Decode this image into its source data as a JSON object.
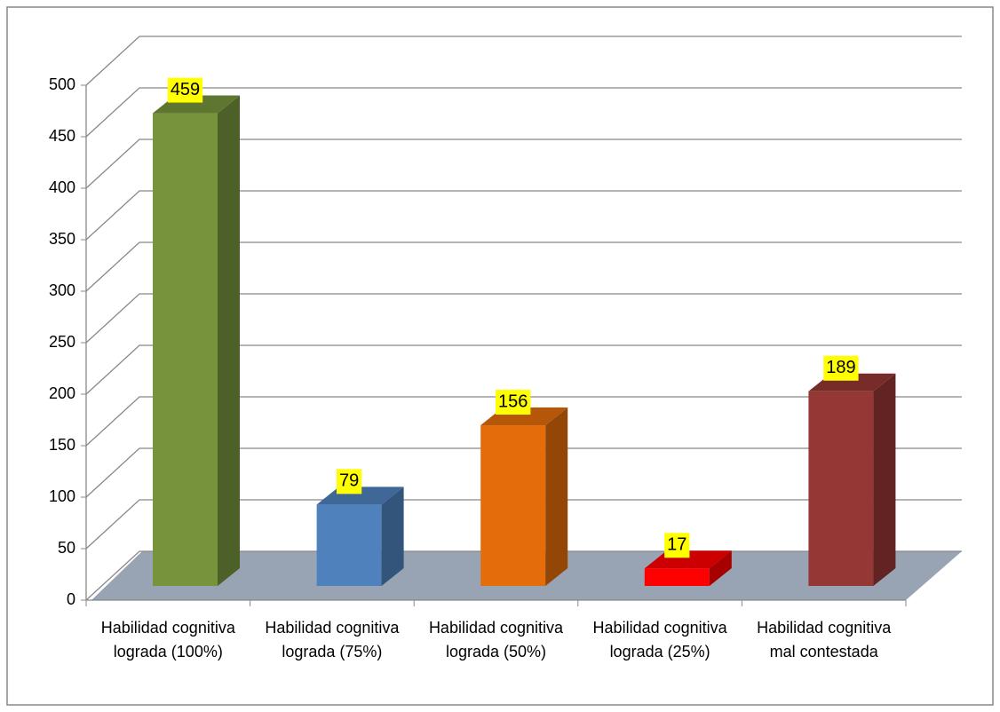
{
  "chart_data": {
    "type": "bar3d",
    "categories": [
      "Habilidad cognitiva lograda (100%)",
      "Habilidad cognitiva lograda (75%)",
      "Habilidad cognitiva lograda (50%)",
      "Habilidad cognitiva lograda (25%)",
      "Habilidad cognitiva mal contestada"
    ],
    "values": [
      459,
      79,
      156,
      17,
      189
    ],
    "colors": [
      "#77933c",
      "#4f81bd",
      "#e46c0a",
      "#ff0000",
      "#953735"
    ],
    "ylim": [
      0,
      500
    ],
    "yticks": [
      0,
      50,
      100,
      150,
      200,
      250,
      300,
      350,
      400,
      450,
      500
    ],
    "grid": true
  }
}
